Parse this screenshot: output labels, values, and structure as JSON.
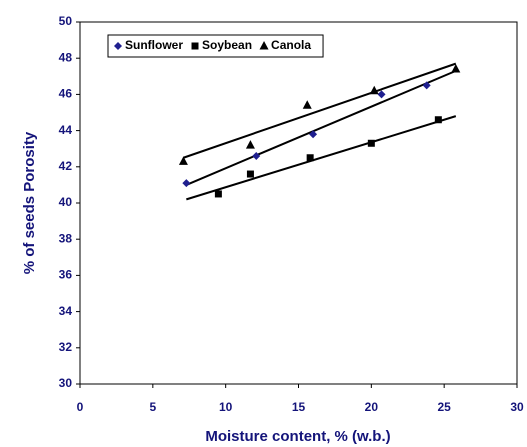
{
  "chart_data": {
    "type": "scatter",
    "xlabel": "Moisture content, % (w.b.)",
    "ylabel": "% of seeds Porosity",
    "xlim": [
      0,
      30
    ],
    "xticks": [
      0,
      5,
      10,
      15,
      20,
      25,
      30
    ],
    "ylim": [
      30,
      50
    ],
    "yticks": [
      30,
      32,
      34,
      36,
      38,
      40,
      42,
      44,
      46,
      48,
      50
    ],
    "legend": "upper left",
    "series": [
      {
        "name": "Sunflower",
        "color": "#1f1f8f",
        "marker": "diamond",
        "x": [
          7.3,
          12.1,
          16.0,
          20.7,
          23.8
        ],
        "values": [
          41.1,
          42.6,
          43.8,
          46.0,
          46.5
        ]
      },
      {
        "name": "Soybean",
        "color": "#000000",
        "marker": "square",
        "x": [
          9.5,
          11.7,
          15.8,
          20.0,
          24.6
        ],
        "values": [
          40.5,
          41.6,
          42.5,
          43.3,
          44.6
        ]
      },
      {
        "name": "Canola",
        "color": "#000000",
        "marker": "triangle",
        "x": [
          7.1,
          11.7,
          15.6,
          20.2,
          25.8
        ],
        "values": [
          42.3,
          43.2,
          45.4,
          46.2,
          47.4
        ]
      }
    ],
    "trendlines": [
      {
        "color": "#000000",
        "x": [
          7.3,
          25.8
        ],
        "values": [
          41.0,
          47.3
        ]
      },
      {
        "color": "#000000",
        "x": [
          7.3,
          25.8
        ],
        "values": [
          40.2,
          44.8
        ]
      },
      {
        "color": "#000000",
        "x": [
          7.1,
          25.8
        ],
        "values": [
          42.5,
          47.7
        ]
      }
    ]
  }
}
